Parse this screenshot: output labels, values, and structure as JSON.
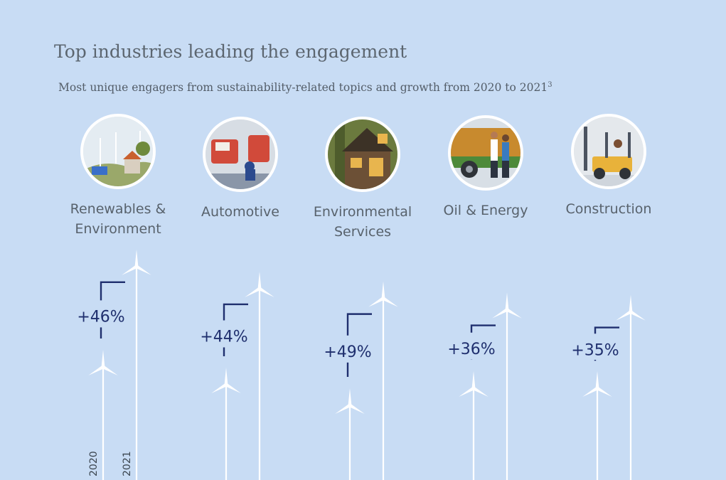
{
  "title": "Top industries leading the engagement",
  "subtitle": "Most unique engagers from sustainability-related topics and growth from 2020 to 2021",
  "subtitle_footnote": "3",
  "colors": {
    "background": "#c8dcf4",
    "accent": "#1f2f6e",
    "turbine": "#ffffff"
  },
  "chart_data": {
    "type": "bar",
    "categories": [
      "Renewables & Environment",
      "Automotive",
      "Environmental Services",
      "Oil & Energy",
      "Construction"
    ],
    "x_labels": [
      "2020",
      "2021"
    ],
    "growth_labels": [
      "+46%",
      "+44%",
      "+49%",
      "+36%",
      "+35%"
    ],
    "growth_percent": [
      46,
      44,
      49,
      36,
      35
    ]
  },
  "industries": [
    {
      "label_line1": "Renewables &",
      "label_line2": "Environment",
      "icon": "wind-farm-icon"
    },
    {
      "label_line1": "Automotive",
      "label_line2": "",
      "icon": "car-factory-icon"
    },
    {
      "label_line1": "Environmental",
      "label_line2": "Services",
      "icon": "green-house-icon"
    },
    {
      "label_line1": "Oil & Energy",
      "label_line2": "",
      "icon": "truck-workers-icon"
    },
    {
      "label_line1": "Construction",
      "label_line2": "",
      "icon": "forklift-icon"
    }
  ]
}
